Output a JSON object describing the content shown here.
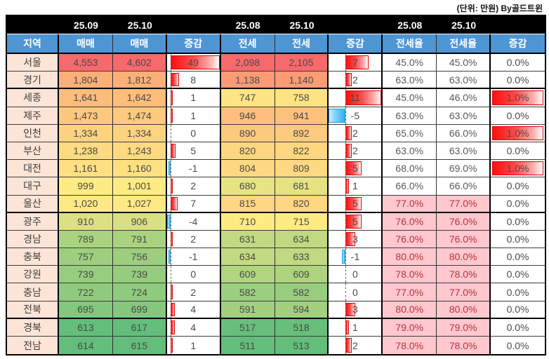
{
  "unit_label": "(단위: 만원) By골드트윈",
  "colors": {
    "subheader_bg": "#4E95D4",
    "month_bg": "#000000",
    "region_bg": "#FCE4D6",
    "scale_min_green": "#63BE7B",
    "scale_mid_yellow": "#FFEB84",
    "scale_max_red": "#F8696B",
    "bar_positive": "#FB0F0F",
    "bar_negative": "#2EB3ED",
    "ratio_high_bg": "#FFC7CE",
    "ratio_high_text": "#B3333D"
  },
  "chart_data": {
    "type": "table",
    "title": "(단위: 만원) By골드트윈",
    "month_row": [
      "",
      "25.09",
      "25.10",
      "",
      "25.08",
      "25.10",
      "",
      "25.08",
      "25.10",
      ""
    ],
    "columns": [
      "지역",
      "매매",
      "매매",
      "증감",
      "전세",
      "전세",
      "증감",
      "전세율",
      "전세율",
      "증감"
    ],
    "column_types": [
      "region",
      "price",
      "price",
      "bar",
      "price",
      "price",
      "bar",
      "ratio",
      "ratio",
      "ratiobar"
    ],
    "rows": [
      [
        "서울",
        4553,
        4602,
        49,
        2098,
        2105,
        7,
        45.0,
        45.0,
        0.0
      ],
      [
        "경기",
        1804,
        1812,
        8,
        1138,
        1140,
        2,
        63.0,
        63.0,
        0.0
      ],
      [
        "세종",
        1641,
        1642,
        1,
        747,
        758,
        11,
        45.0,
        46.0,
        1.0
      ],
      [
        "제주",
        1473,
        1474,
        1,
        946,
        941,
        -5,
        63.0,
        63.0,
        0.0
      ],
      [
        "인천",
        1334,
        1334,
        0,
        890,
        892,
        2,
        65.0,
        66.0,
        1.0
      ],
      [
        "부산",
        1238,
        1243,
        5,
        820,
        822,
        2,
        63.0,
        63.0,
        0.0
      ],
      [
        "대전",
        1161,
        1160,
        -1,
        804,
        809,
        5,
        68.0,
        69.0,
        1.0
      ],
      [
        "대구",
        999,
        1001,
        2,
        680,
        681,
        1,
        66.0,
        66.0,
        0.0
      ],
      [
        "울산",
        1020,
        1027,
        7,
        815,
        820,
        5,
        77.0,
        77.0,
        0.0
      ],
      [
        "광주",
        910,
        906,
        -4,
        710,
        715,
        5,
        76.0,
        76.0,
        0.0
      ],
      [
        "경남",
        789,
        791,
        2,
        631,
        634,
        3,
        76.0,
        76.0,
        0.0
      ],
      [
        "충북",
        757,
        756,
        -1,
        634,
        633,
        -1,
        80.0,
        80.0,
        0.0
      ],
      [
        "강원",
        739,
        739,
        0,
        609,
        609,
        0,
        78.0,
        78.0,
        0.0
      ],
      [
        "충남",
        722,
        724,
        2,
        582,
        582,
        0,
        77.0,
        77.0,
        0.0
      ],
      [
        "전북",
        695,
        699,
        4,
        591,
        594,
        3,
        80.0,
        80.0,
        0.0
      ],
      [
        "경북",
        613,
        617,
        4,
        517,
        518,
        1,
        79.0,
        79.0,
        0.0
      ],
      [
        "전남",
        614,
        615,
        1,
        511,
        513,
        2,
        78.0,
        78.0,
        0.0
      ]
    ],
    "group_breaks_after": [
      "경기",
      "울산",
      "전북"
    ],
    "ratio_highlight_threshold": 70
  }
}
